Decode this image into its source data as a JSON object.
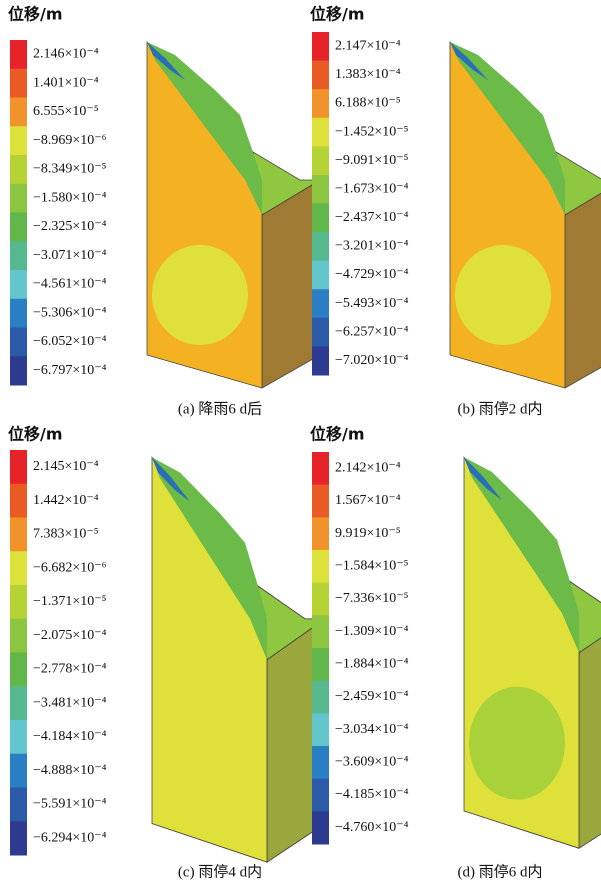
{
  "panels": [
    {
      "title": "位移/m",
      "caption": "(a) 降雨6 d后",
      "legend": [
        "2.146×10⁻⁴",
        "1.401×10⁻⁴",
        "6.555×10⁻⁵",
        "−8.969×10⁻⁶",
        "−8.349×10⁻⁵",
        "−1.580×10⁻⁴",
        "−2.325×10⁻⁴",
        "−3.071×10⁻⁴",
        "−4.561×10⁻⁴",
        "−5.306×10⁻⁴",
        "−6.052×10⁻⁴",
        "−6.797×10⁻⁴"
      ]
    },
    {
      "title": "位移/m",
      "caption": "(b) 雨停2 d内",
      "legend": [
        "2.147×10⁻⁴",
        "1.383×10⁻⁴",
        "6.188×10⁻⁵",
        "−1.452×10⁻⁵",
        "−9.091×10⁻⁵",
        "−1.673×10⁻⁴",
        "−2.437×10⁻⁴",
        "−3.201×10⁻⁴",
        "−4.729×10⁻⁴",
        "−5.493×10⁻⁴",
        "−6.257×10⁻⁴",
        "−7.020×10⁻⁴"
      ]
    },
    {
      "title": "位移/m",
      "caption": "(c) 雨停4 d内",
      "legend": [
        "2.145×10⁻⁴",
        "1.442×10⁻⁴",
        "7.383×10⁻⁵",
        "−6.682×10⁻⁶",
        "−1.371×10⁻⁵",
        "−2.075×10⁻⁴",
        "−2.778×10⁻⁴",
        "−3.481×10⁻⁴",
        "−4.184×10⁻⁴",
        "−4.888×10⁻⁴",
        "−5.591×10⁻⁴",
        "−6.294×10⁻⁴"
      ]
    },
    {
      "title": "位移/m",
      "caption": "(d) 雨停6 d内",
      "legend": [
        "2.142×10⁻⁴",
        "1.567×10⁻⁴",
        "9.919×10⁻⁵",
        "−1.584×10⁻⁵",
        "−7.336×10⁻⁵",
        "−1.309×10⁻⁴",
        "−1.884×10⁻⁴",
        "−2.459×10⁻⁴",
        "−3.034×10⁻⁴",
        "−3.609×10⁻⁴",
        "−4.185×10⁻⁴",
        "−4.760×10⁻⁴"
      ]
    }
  ]
}
